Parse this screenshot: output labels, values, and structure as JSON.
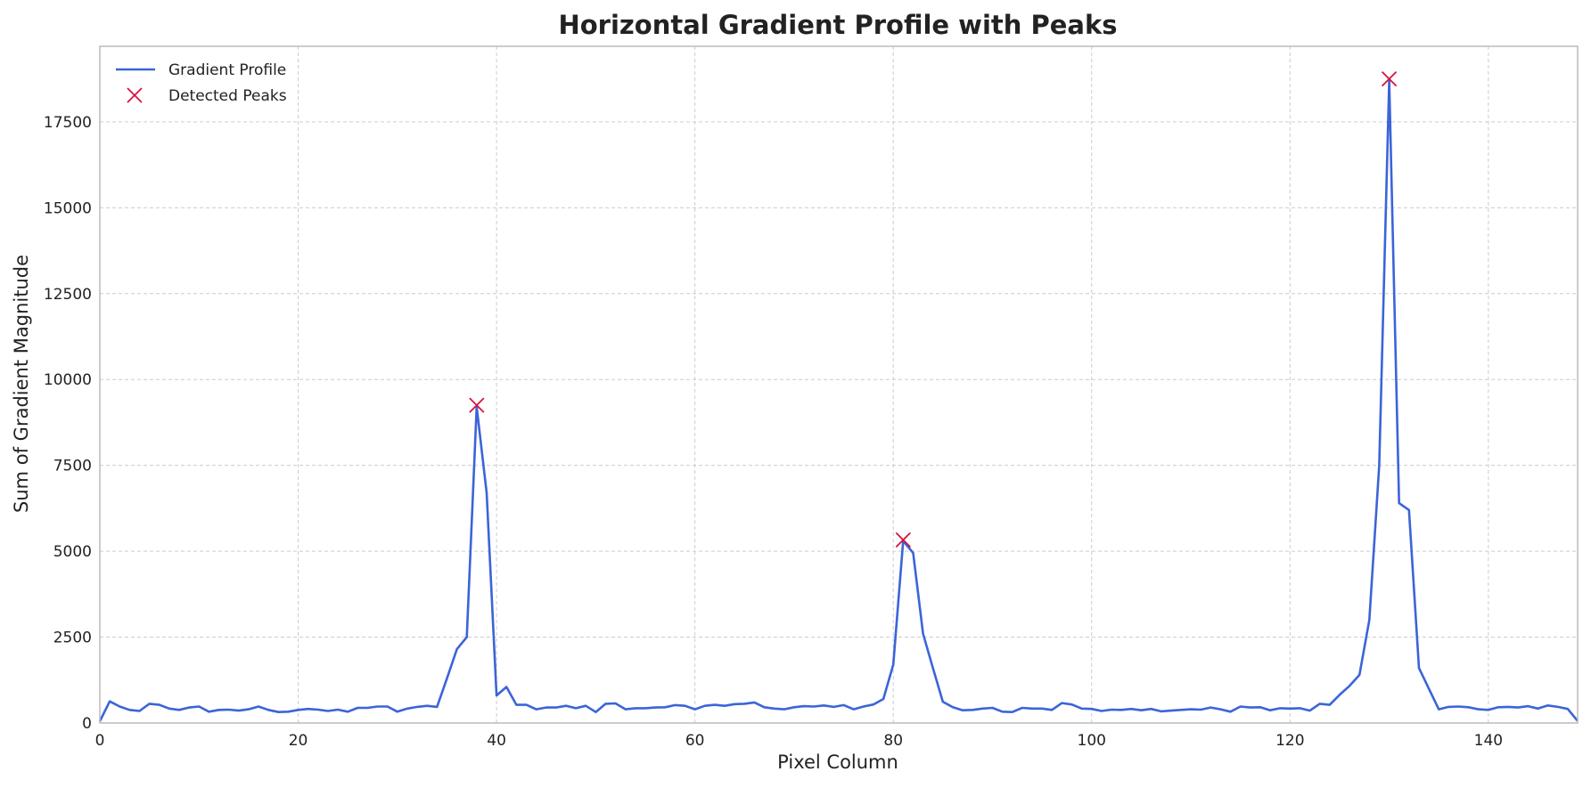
{
  "chart_data": {
    "type": "line",
    "title": "Horizontal Gradient Profile with Peaks",
    "xlabel": "Pixel Column",
    "ylabel": "Sum of Gradient Magnitude",
    "xlim": [
      0,
      149
    ],
    "ylim": [
      0,
      19700
    ],
    "x_ticks": [
      0,
      20,
      40,
      60,
      80,
      100,
      120,
      140
    ],
    "y_ticks": [
      0,
      2500,
      5000,
      7500,
      10000,
      12500,
      15000,
      17500
    ],
    "grid": true,
    "legend_position": "top-left",
    "colors": {
      "line": "#3b64d8",
      "peaks": "#d6133d",
      "grid": "#cccccc",
      "axes": "#bbbbbb"
    },
    "series": [
      {
        "name": "Gradient Profile",
        "style": "line",
        "x_start": 0,
        "x_step": 1,
        "values": [
          50,
          630,
          480,
          380,
          350,
          560,
          530,
          420,
          380,
          450,
          480,
          330,
          380,
          390,
          360,
          400,
          480,
          380,
          320,
          330,
          380,
          410,
          390,
          350,
          390,
          330,
          440,
          440,
          480,
          480,
          330,
          420,
          470,
          500,
          470,
          1300,
          2150,
          2500,
          9200,
          6700,
          800,
          1050,
          530,
          530,
          400,
          450,
          450,
          500,
          430,
          500,
          320,
          560,
          570,
          400,
          430,
          430,
          450,
          460,
          520,
          500,
          400,
          500,
          530,
          500,
          550,
          560,
          600,
          460,
          420,
          400,
          460,
          490,
          480,
          510,
          470,
          520,
          400,
          480,
          540,
          700,
          1700,
          5300,
          4950,
          2600,
          1600,
          620,
          460,
          370,
          380,
          420,
          440,
          330,
          320,
          440,
          420,
          420,
          380,
          580,
          540,
          420,
          410,
          350,
          390,
          380,
          410,
          370,
          410,
          340,
          360,
          380,
          400,
          390,
          450,
          400,
          330,
          480,
          450,
          460,
          370,
          430,
          420,
          430,
          360,
          560,
          530,
          820,
          1080,
          1400,
          3000,
          7500,
          18700,
          6400,
          6200,
          1600,
          1000,
          400,
          470,
          480,
          460,
          400,
          380,
          460,
          470,
          450,
          490,
          420,
          510,
          470,
          410,
          60
        ]
      },
      {
        "name": "Detected Peaks",
        "style": "marker-x",
        "points": [
          {
            "x": 38,
            "y": 9250
          },
          {
            "x": 81,
            "y": 5330
          },
          {
            "x": 130,
            "y": 18750
          }
        ]
      }
    ]
  }
}
